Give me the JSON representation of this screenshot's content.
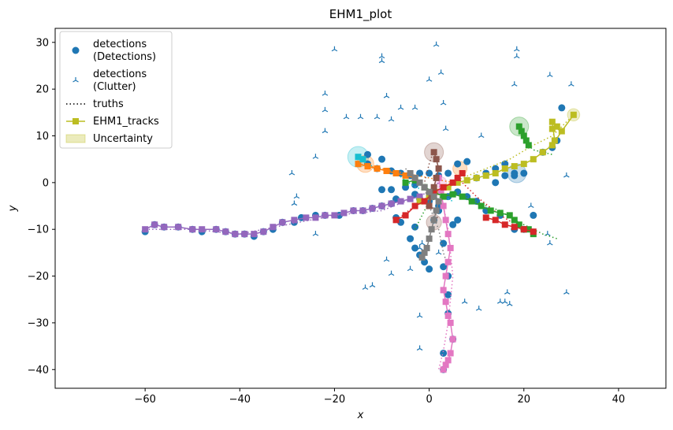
{
  "chart_data": {
    "type": "scatter",
    "title": "EHM1_plot",
    "xlabel": "x",
    "ylabel": "y",
    "xlim": [
      -79,
      50
    ],
    "ylim": [
      -44,
      33
    ],
    "xticks": [
      -60,
      -40,
      -20,
      0,
      20,
      40
    ],
    "yticks": [
      -40,
      -30,
      -20,
      -10,
      0,
      10,
      20,
      30
    ],
    "grid": false,
    "legend_position": "top-left",
    "legend": [
      {
        "label_lines": [
          "detections",
          "(Detections)"
        ],
        "marker": "dot",
        "color": "#1f77b4"
      },
      {
        "label_lines": [
          "detections",
          "(Clutter)"
        ],
        "marker": "tri",
        "color": "#1f77b4"
      },
      {
        "label_lines": [
          "truths"
        ],
        "marker": "dotted-line",
        "color": "#000000"
      },
      {
        "label_lines": [
          "EHM1_tracks"
        ],
        "marker": "square-line",
        "color": "#bcbd22"
      },
      {
        "label_lines": [
          "Uncertainty"
        ],
        "marker": "patch",
        "color": "#bcbd22"
      }
    ],
    "clutter": [
      [
        -20,
        28.5
      ],
      [
        -22,
        19
      ],
      [
        -22,
        15.5
      ],
      [
        -22,
        11
      ],
      [
        -17.5,
        14
      ],
      [
        -14.5,
        14
      ],
      [
        -11,
        14
      ],
      [
        -8,
        13.5
      ],
      [
        -9,
        18.5
      ],
      [
        -10,
        27
      ],
      [
        -10,
        26
      ],
      [
        -6,
        16
      ],
      [
        -3,
        16
      ],
      [
        0,
        22
      ],
      [
        1.5,
        29.5
      ],
      [
        2.5,
        23.5
      ],
      [
        3,
        17
      ],
      [
        3.5,
        11.5
      ],
      [
        -24,
        5.5
      ],
      [
        -29,
        2
      ],
      [
        -28,
        -3
      ],
      [
        -28.5,
        -4.5
      ],
      [
        -24,
        -11
      ],
      [
        -13.5,
        -22.5
      ],
      [
        -12,
        -22
      ],
      [
        -9,
        -16.5
      ],
      [
        -8,
        -19.5
      ],
      [
        -4,
        -18.5
      ],
      [
        -2,
        -14
      ],
      [
        -1.5,
        -13
      ],
      [
        2,
        -15
      ],
      [
        -2,
        -28.5
      ],
      [
        -2,
        -35.5
      ],
      [
        7.5,
        -25.5
      ],
      [
        10.5,
        -27
      ],
      [
        15,
        -25.5
      ],
      [
        16,
        -25.5
      ],
      [
        16.5,
        -23.5
      ],
      [
        17,
        -26
      ],
      [
        18,
        21
      ],
      [
        18.5,
        28.5
      ],
      [
        18.5,
        27
      ],
      [
        11,
        10
      ],
      [
        21.5,
        -5
      ],
      [
        25,
        -11
      ],
      [
        25.5,
        -13
      ],
      [
        25.5,
        23
      ],
      [
        29,
        -23.5
      ],
      [
        29,
        1.5
      ],
      [
        30,
        21
      ]
    ],
    "truths": [
      {
        "name": "green",
        "color": "#2ca02c",
        "x": [
          -3,
          0,
          5,
          8,
          12,
          15,
          18,
          20,
          22,
          24,
          27
        ],
        "y": [
          -10,
          -4,
          -2,
          -3,
          -5,
          -6,
          -8,
          -9,
          -10,
          -11,
          -12
        ]
      },
      {
        "name": "olive",
        "color": "#bcbd22",
        "x": [
          -1,
          3,
          7,
          12,
          17,
          22,
          26,
          28,
          30
        ],
        "y": [
          -4,
          -1,
          1,
          3,
          5,
          8,
          10,
          12,
          14
        ]
      },
      {
        "name": "pink",
        "color": "#e377c2",
        "x": [
          2,
          4,
          5,
          4,
          3,
          2
        ],
        "y": [
          0,
          -10,
          -20,
          -30,
          -36,
          -40
        ]
      },
      {
        "name": "purple",
        "color": "#9467bd",
        "x": [
          -60,
          -50,
          -40,
          -30,
          -20,
          -10,
          -5,
          0,
          2
        ],
        "y": [
          -10,
          -10,
          -11,
          -9,
          -7,
          -6,
          -4,
          -2,
          0
        ]
      },
      {
        "name": "red",
        "color": "#d62728",
        "x": [
          -7,
          -3,
          2,
          6,
          10,
          15,
          20,
          23
        ],
        "y": [
          -8,
          -5,
          -2,
          1,
          -3,
          -7,
          -10,
          -11
        ]
      },
      {
        "name": "cyan",
        "color": "#17becf",
        "x": [
          -15,
          -11,
          -7,
          -3,
          1,
          5
        ],
        "y": [
          5,
          3,
          2,
          -1,
          -2,
          -4
        ]
      },
      {
        "name": "orange",
        "color": "#ff7f0e",
        "x": [
          -15,
          -10,
          -5,
          0,
          5
        ],
        "y": [
          4,
          3,
          2,
          1,
          0
        ]
      },
      {
        "name": "brown",
        "color": "#8c564b",
        "x": [
          1,
          0,
          -1,
          0,
          2
        ],
        "y": [
          7,
          4,
          0,
          -4,
          -8
        ]
      },
      {
        "name": "gray",
        "color": "#7f7f7f",
        "x": [
          -5,
          -3,
          -1,
          0,
          2,
          3,
          4
        ],
        "y": [
          3,
          1,
          -1,
          -5,
          -10,
          -15,
          -18
        ]
      },
      {
        "name": "green2",
        "color": "#2ca02c",
        "x": [
          19,
          20,
          22,
          26
        ],
        "y": [
          12,
          9,
          7,
          6
        ]
      }
    ],
    "detections": [
      [
        -60,
        -10.5
      ],
      [
        -58,
        -9
      ],
      [
        -56,
        -9.5
      ],
      [
        -53,
        -9.5
      ],
      [
        -50,
        -10
      ],
      [
        -48,
        -10.5
      ],
      [
        -45,
        -10
      ],
      [
        -43,
        -10.5
      ],
      [
        -41,
        -11
      ],
      [
        -39,
        -11
      ],
      [
        -37,
        -11.5
      ],
      [
        -35,
        -10.5
      ],
      [
        -33,
        -10
      ],
      [
        -31,
        -8.5
      ],
      [
        -28.5,
        -8.5
      ],
      [
        -27,
        -7.5
      ],
      [
        -24,
        -7
      ],
      [
        -22,
        -7
      ],
      [
        -19,
        -7
      ],
      [
        -16,
        -6
      ],
      [
        -14,
        -6
      ],
      [
        -12,
        -5.5
      ],
      [
        -10,
        -5
      ],
      [
        -8,
        -4.5
      ],
      [
        -7,
        -3.5
      ],
      [
        -10,
        -1.5
      ],
      [
        -8,
        -1.5
      ],
      [
        -5,
        -1
      ],
      [
        -3,
        -0.5
      ],
      [
        -3,
        -2.5
      ],
      [
        -2,
        -3.5
      ],
      [
        0,
        -4
      ],
      [
        -3,
        -9.5
      ],
      [
        -6,
        -8.5
      ],
      [
        -7,
        -7.5
      ],
      [
        -4,
        -12
      ],
      [
        -3,
        -14
      ],
      [
        -2,
        -15.5
      ],
      [
        -1,
        -17
      ],
      [
        0,
        -18.5
      ],
      [
        3,
        -13
      ],
      [
        3,
        -18
      ],
      [
        4,
        -20
      ],
      [
        4,
        -24
      ],
      [
        4,
        -28
      ],
      [
        5,
        -33.5
      ],
      [
        3,
        -36.5
      ],
      [
        3,
        -40
      ],
      [
        -13,
        4
      ],
      [
        -11,
        3
      ],
      [
        -8,
        2.5
      ],
      [
        -6,
        2
      ],
      [
        -4,
        1.5
      ],
      [
        -2,
        2
      ],
      [
        0,
        2
      ],
      [
        2,
        1.5
      ],
      [
        4,
        2
      ],
      [
        6,
        4
      ],
      [
        8,
        4.5
      ],
      [
        10,
        1
      ],
      [
        12,
        2
      ],
      [
        14,
        3
      ],
      [
        16,
        4
      ],
      [
        18,
        1.5
      ],
      [
        20,
        2
      ],
      [
        14,
        0
      ],
      [
        16,
        1.5
      ],
      [
        18,
        2
      ],
      [
        22,
        -7
      ],
      [
        20,
        -10
      ],
      [
        18,
        -10
      ],
      [
        15,
        -7
      ],
      [
        12,
        -6
      ],
      [
        10,
        -4
      ],
      [
        8,
        -3
      ],
      [
        6,
        -2
      ],
      [
        4,
        -3
      ],
      [
        2,
        -5
      ],
      [
        1,
        -8
      ],
      [
        2,
        -6
      ],
      [
        5,
        -9
      ],
      [
        6,
        -8
      ],
      [
        27,
        9
      ],
      [
        28,
        16
      ],
      [
        -13,
        6
      ],
      [
        -10,
        5
      ],
      [
        24,
        6.5
      ],
      [
        26,
        7.5
      ]
    ],
    "tracks": [
      {
        "name": "purple",
        "color": "#9467bd",
        "x": [
          -60,
          -58,
          -56,
          -53,
          -50,
          -48,
          -45,
          -43,
          -41,
          -39,
          -37,
          -35,
          -33,
          -31,
          -28.5,
          -26,
          -24,
          -22,
          -20,
          -18,
          -16,
          -14,
          -12,
          -10,
          -8,
          -6,
          -4,
          -2
        ],
        "y": [
          -10,
          -9,
          -9.5,
          -9.5,
          -10,
          -10,
          -10,
          -10.5,
          -11,
          -11,
          -11,
          -10.5,
          -9.5,
          -8.5,
          -8,
          -7.5,
          -7.5,
          -7,
          -7,
          -6.5,
          -6,
          -6,
          -5.5,
          -5,
          -4.5,
          -4,
          -3.5,
          -3
        ]
      },
      {
        "name": "olive",
        "color": "#bcbd22",
        "x": [
          -2,
          0,
          2,
          4,
          6,
          8,
          10,
          12,
          14,
          16,
          18,
          20,
          22,
          24,
          26,
          28,
          30.5
        ],
        "y": [
          -4,
          -3,
          -2,
          -1,
          0,
          0.5,
          1,
          1.5,
          2,
          3,
          3.5,
          4,
          5,
          6.5,
          8,
          11,
          14.5
        ]
      },
      {
        "name": "olive-b",
        "color": "#bcbd22",
        "x": [
          26,
          27,
          26,
          26.5
        ],
        "y": [
          11.5,
          12,
          13,
          9
        ]
      },
      {
        "name": "pink",
        "color": "#e377c2",
        "x": [
          2,
          2.5,
          3,
          3.5,
          4,
          4.5,
          4,
          3.5,
          3,
          3.5,
          4,
          4.5,
          5,
          4.5,
          4,
          3.5,
          3
        ],
        "y": [
          1,
          -2,
          -5,
          -8,
          -11,
          -14,
          -17,
          -20,
          -23,
          -25.5,
          -28.5,
          -30,
          -33.5,
          -36.5,
          -38,
          -39,
          -40
        ]
      },
      {
        "name": "green",
        "color": "#2ca02c",
        "x": [
          -5,
          -3,
          -1,
          1,
          3,
          5,
          7,
          9,
          11,
          13,
          15,
          17,
          18,
          19,
          20,
          21,
          22
        ],
        "y": [
          0,
          0.5,
          -1,
          -2,
          -3,
          -2.5,
          -3,
          -4,
          -5,
          -6,
          -6.5,
          -7,
          -8,
          -9,
          -10,
          -10,
          -11
        ]
      },
      {
        "name": "green-b",
        "color": "#2ca02c",
        "x": [
          19,
          19.5,
          20,
          20.5,
          21
        ],
        "y": [
          12,
          11,
          10,
          9,
          8
        ]
      },
      {
        "name": "red",
        "color": "#d62728",
        "x": [
          -7,
          -5,
          -3,
          -1,
          1,
          3,
          5,
          6,
          7
        ],
        "y": [
          -8,
          -7,
          -5,
          -4,
          -2,
          -1,
          0,
          1,
          2
        ]
      },
      {
        "name": "red-b",
        "color": "#d62728",
        "x": [
          12,
          14,
          16,
          18,
          20,
          22
        ],
        "y": [
          -7.5,
          -8,
          -9,
          -9.5,
          -10,
          -10.5
        ]
      },
      {
        "name": "orange",
        "color": "#ff7f0e",
        "x": [
          -15,
          -13,
          -11,
          -9,
          -7,
          -5,
          -3
        ],
        "y": [
          4,
          3.5,
          3,
          2.5,
          2,
          1.5,
          1
        ]
      },
      {
        "name": "brown",
        "color": "#8c564b",
        "x": [
          1,
          1.5,
          2,
          1.5,
          1,
          0.5,
          0
        ],
        "y": [
          6.5,
          5,
          3,
          1,
          -1,
          -3,
          -5
        ]
      },
      {
        "name": "gray",
        "color": "#7f7f7f",
        "x": [
          -4,
          -3,
          -2,
          -1,
          0,
          1,
          2,
          1.5,
          1,
          0.5,
          0,
          -0.5,
          -1,
          -1.5
        ],
        "y": [
          2,
          1,
          0,
          -1,
          -2,
          -3,
          -4,
          -6,
          -8,
          -10,
          -12,
          -14,
          -15,
          -16
        ]
      },
      {
        "name": "cyan",
        "color": "#17becf",
        "x": [
          -15,
          -14
        ],
        "y": [
          5.5,
          5
        ]
      }
    ],
    "uncertainty": [
      {
        "color": "#17becf",
        "x": -15,
        "y": 5.5,
        "r": 2.2
      },
      {
        "color": "#ff7f0e",
        "x": -13.5,
        "y": 4,
        "r": 1.8
      },
      {
        "color": "#8c564b",
        "x": 1,
        "y": 6.5,
        "r": 2
      },
      {
        "color": "#2ca02c",
        "x": 19,
        "y": 12,
        "r": 2
      },
      {
        "color": "#1f77b4",
        "x": 18.5,
        "y": 2,
        "r": 2
      },
      {
        "color": "#bcbd22",
        "x": 30.5,
        "y": 14.5,
        "r": 1.3
      },
      {
        "color": "#8c564b",
        "x": 1,
        "y": -8.5,
        "r": 1.6
      },
      {
        "color": "#ff7f0e",
        "x": 6.5,
        "y": 3,
        "r": 1.5
      },
      {
        "color": "#e377c2",
        "x": 2.5,
        "y": 0,
        "r": 1.2
      }
    ]
  }
}
